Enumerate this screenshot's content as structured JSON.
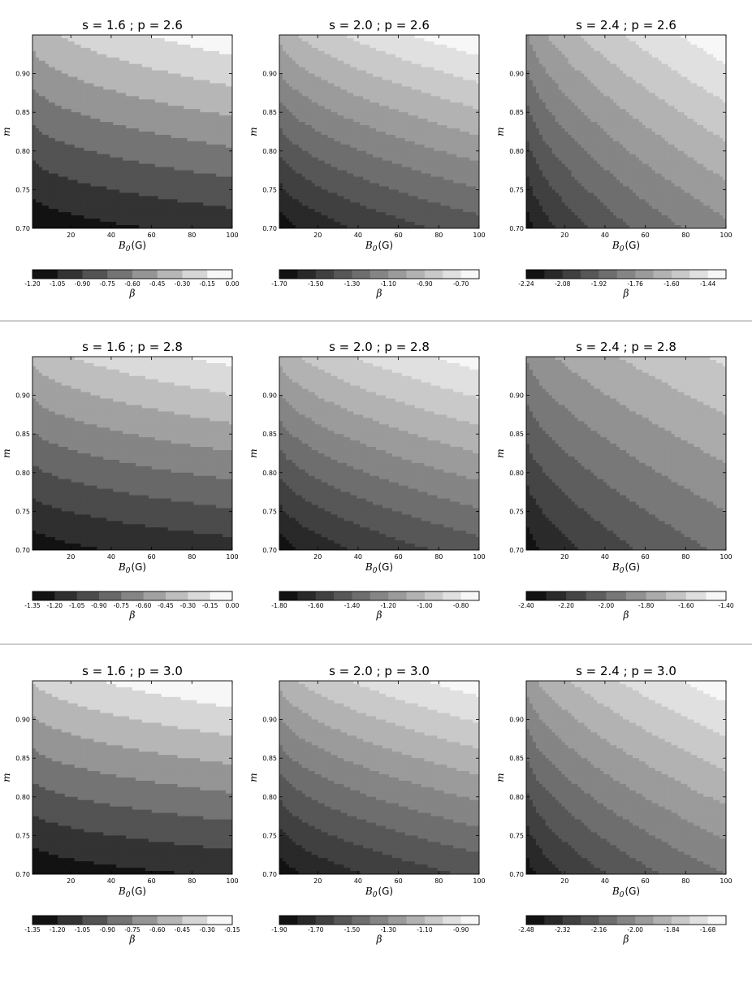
{
  "chart_data": [
    {
      "type": "contourf",
      "title": "s = 1.6 ; p = 2.6",
      "s": 1.6,
      "p": 2.6,
      "xlabel": "B",
      "xlabel_sub": "0",
      "xlabel_unit": "(G)",
      "ylabel": "m",
      "colorbar_label": "β",
      "xlim": [
        1,
        100
      ],
      "ylim": [
        0.7,
        0.95
      ],
      "xticks": [
        "20",
        "40",
        "60",
        "80",
        "100"
      ],
      "yticks": [
        "0.70",
        "0.75",
        "0.80",
        "0.85",
        "0.90"
      ],
      "levels": [
        -1.2,
        -1.05,
        -0.9,
        -0.75,
        -0.6,
        -0.45,
        -0.3,
        -0.15,
        0.0
      ],
      "colorbar_ticks": [
        "-1.20",
        "-1.05",
        "-0.90",
        "-0.75",
        "-0.60",
        "-0.45",
        "-0.30",
        "-0.15",
        "0.00"
      ],
      "corners": {
        "bottom_left": -1.18,
        "bottom_right": -1.0,
        "top_left": -0.4,
        "top_right": -0.05
      }
    },
    {
      "type": "contourf",
      "title": "s = 2.0 ; p = 2.6",
      "s": 2.0,
      "p": 2.6,
      "xlabel": "B",
      "xlabel_sub": "0",
      "xlabel_unit": "(G)",
      "ylabel": "m",
      "colorbar_label": "β",
      "xlim": [
        1,
        100
      ],
      "ylim": [
        0.7,
        0.95
      ],
      "xticks": [
        "20",
        "40",
        "60",
        "80",
        "100"
      ],
      "yticks": [
        "0.70",
        "0.75",
        "0.80",
        "0.85",
        "0.90"
      ],
      "levels": [
        -1.7,
        -1.6,
        -1.5,
        -1.4,
        -1.3,
        -1.2,
        -1.1,
        -1.0,
        -0.9,
        -0.8,
        -0.7,
        -0.6
      ],
      "colorbar_ticks": [
        "-1.70",
        "-1.50",
        "-1.30",
        "-1.10",
        "-0.90",
        "-0.70"
      ],
      "corners": {
        "bottom_left": -1.68,
        "bottom_right": -1.35,
        "top_left": -0.98,
        "top_right": -0.62
      }
    },
    {
      "type": "contourf",
      "title": "s = 2.4 ; p = 2.6",
      "s": 2.4,
      "p": 2.6,
      "xlabel": "B",
      "xlabel_sub": "0",
      "xlabel_unit": "(G)",
      "ylabel": "m",
      "colorbar_label": "β",
      "xlim": [
        1,
        100
      ],
      "ylim": [
        0.7,
        0.95
      ],
      "xticks": [
        "20",
        "40",
        "60",
        "80",
        "100"
      ],
      "yticks": [
        "0.70",
        "0.75",
        "0.80",
        "0.85",
        "0.90"
      ],
      "levels": [
        -2.24,
        -2.16,
        -2.08,
        -2.0,
        -1.92,
        -1.84,
        -1.76,
        -1.68,
        -1.6,
        -1.52,
        -1.44,
        -1.36
      ],
      "colorbar_ticks": [
        "-2.24",
        "-2.08",
        "-1.92",
        "-1.76",
        "-1.60",
        "-1.44"
      ],
      "corners": {
        "bottom_left": -2.22,
        "bottom_right": -1.78,
        "top_left": -1.78,
        "top_right": -1.38
      }
    },
    {
      "type": "contourf",
      "title": "s = 1.6 ; p = 2.8",
      "s": 1.6,
      "p": 2.8,
      "xlabel": "B",
      "xlabel_sub": "0",
      "xlabel_unit": "(G)",
      "ylabel": "m",
      "colorbar_label": "β",
      "xlim": [
        1,
        100
      ],
      "ylim": [
        0.7,
        0.95
      ],
      "xticks": [
        "20",
        "40",
        "60",
        "80",
        "100"
      ],
      "yticks": [
        "0.70",
        "0.75",
        "0.80",
        "0.85",
        "0.90"
      ],
      "levels": [
        -1.35,
        -1.2,
        -1.05,
        -0.9,
        -0.75,
        -0.6,
        -0.45,
        -0.3,
        -0.15,
        0.0
      ],
      "colorbar_ticks": [
        "-1.35",
        "-1.20",
        "-1.05",
        "-0.90",
        "-0.75",
        "-0.60",
        "-0.45",
        "-0.30",
        "-0.15",
        "0.00"
      ],
      "corners": {
        "bottom_left": -1.3,
        "bottom_right": -1.12,
        "top_left": -0.42,
        "top_right": -0.1
      }
    },
    {
      "type": "contourf",
      "title": "s = 2.0 ; p = 2.8",
      "s": 2.0,
      "p": 2.8,
      "xlabel": "B",
      "xlabel_sub": "0",
      "xlabel_unit": "(G)",
      "ylabel": "m",
      "colorbar_label": "β",
      "xlim": [
        1,
        100
      ],
      "ylim": [
        0.7,
        0.95
      ],
      "xticks": [
        "20",
        "40",
        "60",
        "80",
        "100"
      ],
      "yticks": [
        "0.70",
        "0.75",
        "0.80",
        "0.85",
        "0.90"
      ],
      "levels": [
        -1.8,
        -1.7,
        -1.6,
        -1.5,
        -1.4,
        -1.3,
        -1.2,
        -1.1,
        -1.0,
        -0.9,
        -0.8,
        -0.7
      ],
      "colorbar_ticks": [
        "-1.80",
        "-1.60",
        "-1.40",
        "-1.20",
        "-1.00",
        "-0.80"
      ],
      "corners": {
        "bottom_left": -1.78,
        "bottom_right": -1.45,
        "top_left": -1.08,
        "top_right": -0.75
      }
    },
    {
      "type": "contourf",
      "title": "s = 2.4 ; p = 2.8",
      "s": 2.4,
      "p": 2.8,
      "xlabel": "B",
      "xlabel_sub": "0",
      "xlabel_unit": "(G)",
      "ylabel": "m",
      "colorbar_label": "β",
      "xlim": [
        1,
        100
      ],
      "ylim": [
        0.7,
        0.95
      ],
      "xticks": [
        "20",
        "40",
        "60",
        "80",
        "100"
      ],
      "yticks": [
        "0.70",
        "0.75",
        "0.80",
        "0.85",
        "0.90"
      ],
      "levels": [
        -2.4,
        -2.3,
        -2.2,
        -2.1,
        -2.0,
        -1.9,
        -1.8,
        -1.7,
        -1.6,
        -1.5,
        -1.4
      ],
      "colorbar_ticks": [
        "-2.40",
        "-2.20",
        "-2.00",
        "-1.80",
        "-1.60",
        "-1.40"
      ],
      "corners": {
        "bottom_left": -2.38,
        "bottom_right": -1.98,
        "top_left": -1.9,
        "top_right": -1.58
      }
    },
    {
      "type": "contourf",
      "title": "s = 1.6 ; p = 3.0",
      "s": 1.6,
      "p": 3.0,
      "xlabel": "B",
      "xlabel_sub": "0",
      "xlabel_unit": "(G)",
      "ylabel": "m",
      "colorbar_label": "β",
      "xlim": [
        1,
        100
      ],
      "ylim": [
        0.7,
        0.95
      ],
      "xticks": [
        "20",
        "40",
        "60",
        "80",
        "100"
      ],
      "yticks": [
        "0.70",
        "0.75",
        "0.80",
        "0.85",
        "0.90"
      ],
      "levels": [
        -1.35,
        -1.2,
        -1.05,
        -0.9,
        -0.75,
        -0.6,
        -0.45,
        -0.3,
        -0.15
      ],
      "colorbar_ticks": [
        "-1.35",
        "-1.20",
        "-1.05",
        "-0.90",
        "-0.75",
        "-0.60",
        "-0.45",
        "-0.30",
        "-0.15"
      ],
      "corners": {
        "bottom_left": -1.33,
        "bottom_right": -1.18,
        "top_left": -0.45,
        "top_right": -0.16
      }
    },
    {
      "type": "contourf",
      "title": "s = 2.0 ; p = 3.0",
      "s": 2.0,
      "p": 3.0,
      "xlabel": "B",
      "xlabel_sub": "0",
      "xlabel_unit": "(G)",
      "ylabel": "m",
      "colorbar_label": "β",
      "xlim": [
        1,
        100
      ],
      "ylim": [
        0.7,
        0.95
      ],
      "xticks": [
        "20",
        "40",
        "60",
        "80",
        "100"
      ],
      "yticks": [
        "0.70",
        "0.75",
        "0.80",
        "0.85",
        "0.90"
      ],
      "levels": [
        -1.9,
        -1.8,
        -1.7,
        -1.6,
        -1.5,
        -1.4,
        -1.3,
        -1.2,
        -1.1,
        -1.0,
        -0.9,
        -0.8
      ],
      "colorbar_ticks": [
        "-1.90",
        "-1.70",
        "-1.50",
        "-1.30",
        "-1.10",
        "-0.90"
      ],
      "corners": {
        "bottom_left": -1.88,
        "bottom_right": -1.58,
        "top_left": -1.18,
        "top_right": -0.84
      }
    },
    {
      "type": "contourf",
      "title": "s = 2.4 ; p = 3.0",
      "s": 2.4,
      "p": 3.0,
      "xlabel": "B",
      "xlabel_sub": "0",
      "xlabel_unit": "(G)",
      "ylabel": "m",
      "colorbar_label": "β",
      "xlim": [
        1,
        100
      ],
      "ylim": [
        0.7,
        0.95
      ],
      "xticks": [
        "20",
        "40",
        "60",
        "80",
        "100"
      ],
      "yticks": [
        "0.70",
        "0.75",
        "0.80",
        "0.85",
        "0.90"
      ],
      "levels": [
        -2.48,
        -2.4,
        -2.32,
        -2.24,
        -2.16,
        -2.08,
        -2.0,
        -1.92,
        -1.84,
        -1.76,
        -1.68,
        -1.6
      ],
      "colorbar_ticks": [
        "-2.48",
        "-2.32",
        "-2.16",
        "-2.00",
        "-1.84",
        "-1.68"
      ],
      "corners": {
        "bottom_left": -2.46,
        "bottom_right": -2.08,
        "top_left": -1.98,
        "top_right": -1.63
      }
    }
  ]
}
